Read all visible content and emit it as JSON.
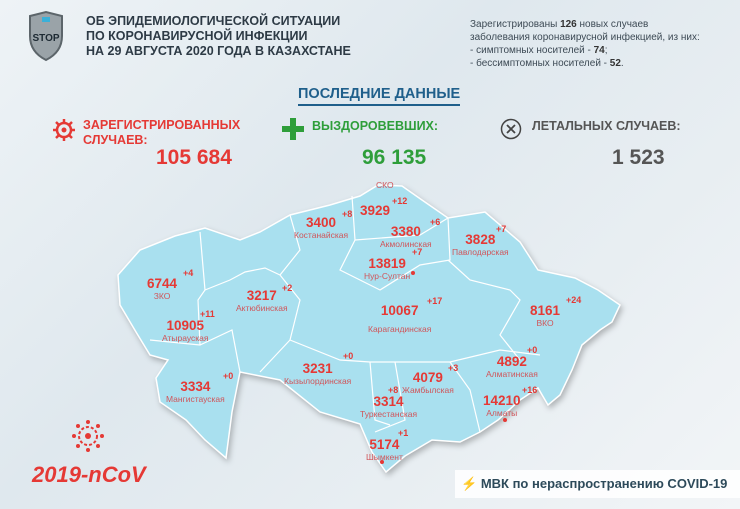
{
  "header": {
    "title_lines": [
      "ОБ ЭПИДЕМИОЛОГИЧЕСКОЙ СИТУАЦИИ",
      "ПО КОРОНАВИРУСНОЙ ИНФЕКЦИИ",
      "НА 29 АВГУСТА 2020 ГОДА В КАЗАХСТАНЕ"
    ],
    "logo_text": "STOP",
    "info": {
      "l1a": "Зарегистрированы ",
      "new": "126",
      "l1b": " новых случаев",
      "l2": "заболевания коронавирусной инфекцией, из них:",
      "l3a": "- симптомных носителей - ",
      "sym": "74",
      "l3b": ";",
      "l4a": "- бессимптомных носителей - ",
      "asym": "52",
      "l4b": "."
    }
  },
  "section_title": "ПОСЛЕДНИЕ ДАННЫЕ",
  "stats": {
    "registered": {
      "label1": "ЗАРЕГИСТРИРОВАННЫХ",
      "label2": "СЛУЧАЕВ:",
      "value": "105 684",
      "icon": "virus-icon"
    },
    "recovered": {
      "label": "ВЫЗДОРОВЕВШИХ:",
      "value": "96 135",
      "icon": "plus-icon"
    },
    "deaths": {
      "label": "ЛЕТАЛЬНЫХ СЛУЧАЕВ:",
      "value": "1 523",
      "icon": "x-circle-icon"
    }
  },
  "regions": [
    {
      "name": "СКО",
      "count": "3929",
      "delta": "+12"
    },
    {
      "name": "Костанайская",
      "count": "3400",
      "delta": "+8"
    },
    {
      "name": "Акмолинская",
      "count": "3380",
      "delta": "+6"
    },
    {
      "name": "Павлодарская",
      "count": "3828",
      "delta": "+7"
    },
    {
      "name": "Нур-Султан",
      "count": "13819",
      "delta": "+7"
    },
    {
      "name": "ЗКО",
      "count": "6744",
      "delta": "+4"
    },
    {
      "name": "Актюбинская",
      "count": "3217",
      "delta": "+2"
    },
    {
      "name": "Карагандинская",
      "count": "10067",
      "delta": "+17"
    },
    {
      "name": "ВКО",
      "count": "8161",
      "delta": "+24"
    },
    {
      "name": "Атырауская",
      "count": "10905",
      "delta": "+11"
    },
    {
      "name": "Кызылординская",
      "count": "3231",
      "delta": "+0"
    },
    {
      "name": "Мангистауская",
      "count": "3334",
      "delta": "+0"
    },
    {
      "name": "Жамбылская",
      "count": "4079",
      "delta": "+3"
    },
    {
      "name": "Туркестанская",
      "count": "3314",
      "delta": "+8"
    },
    {
      "name": "Алматинская",
      "count": "4892",
      "delta": "+0"
    },
    {
      "name": "Алматы",
      "count": "14210",
      "delta": "+16"
    },
    {
      "name": "Шымкент",
      "count": "5174",
      "delta": "+1"
    }
  ],
  "colors": {
    "red": "#e53935",
    "green": "#2e9e3a",
    "map": "#a9e0ef",
    "accent": "#1f5f8b"
  },
  "footer": {
    "ncov": "2019-nCoV",
    "mvk": "МВК по нераспространению COVID-19",
    "mvk_icon": "lightning-icon"
  }
}
